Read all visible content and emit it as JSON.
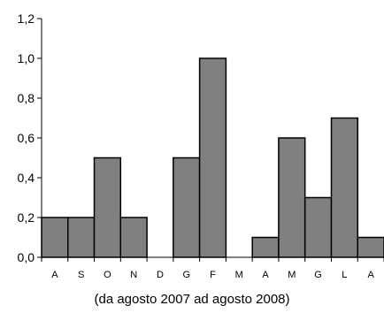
{
  "chart_data": {
    "type": "bar",
    "title": "(da agosto 2007 ad agosto 2008)",
    "categories": [
      "A",
      "S",
      "O",
      "N",
      "D",
      "G",
      "F",
      "M",
      "A",
      "M",
      "G",
      "L",
      "A"
    ],
    "values": [
      0.2,
      0.2,
      0.5,
      0.2,
      0.0,
      0.5,
      1.0,
      0.0,
      0.1,
      0.6,
      0.3,
      0.7,
      0.1
    ],
    "ylim": [
      0,
      1.2
    ],
    "yticks": [
      "0,0",
      "0,2",
      "0,4",
      "0,6",
      "0,8",
      "1,0",
      "1,2"
    ],
    "ytick_values": [
      0,
      0.2,
      0.4,
      0.6,
      0.8,
      1.0,
      1.2
    ],
    "xlabel": "",
    "ylabel": "",
    "grid": false,
    "bar_color": "#808080"
  }
}
